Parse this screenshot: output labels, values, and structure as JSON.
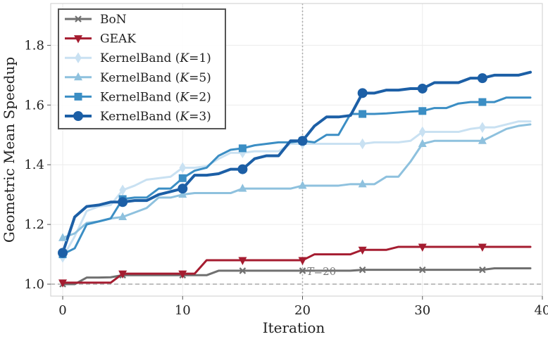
{
  "chart_data": {
    "type": "line",
    "title": "",
    "xlabel": "Iteration",
    "ylabel": "Geometric Mean Speedup",
    "xlim": [
      -1,
      40
    ],
    "ylim": [
      0.96,
      1.94
    ],
    "x_ticks": [
      0,
      10,
      20,
      30,
      40
    ],
    "y_ticks": [
      1.0,
      1.2,
      1.4,
      1.6,
      1.8
    ],
    "x_tick_labels": [
      "0",
      "10",
      "20",
      "30",
      "40"
    ],
    "y_tick_labels": [
      "1.0",
      "1.2",
      "1.4",
      "1.6",
      "1.8"
    ],
    "grid": true,
    "legend_position": "top-left",
    "reference_line": {
      "y": 1.0,
      "style": "dashed"
    },
    "vline": {
      "x": 20,
      "label": "T=20",
      "style": "dotted"
    },
    "x": [
      0,
      1,
      2,
      3,
      4,
      5,
      6,
      7,
      8,
      9,
      10,
      11,
      12,
      13,
      14,
      15,
      16,
      17,
      18,
      19,
      20,
      21,
      22,
      23,
      24,
      25,
      26,
      27,
      28,
      29,
      30,
      31,
      32,
      33,
      34,
      35,
      36,
      37,
      38,
      39
    ],
    "series": [
      {
        "name": "BoN",
        "legend_main": "BoN",
        "legend_k": "",
        "color": "#707070",
        "marker": "x",
        "values": [
          1.0,
          1.0,
          1.022,
          1.022,
          1.023,
          1.03,
          1.03,
          1.03,
          1.03,
          1.03,
          1.03,
          1.03,
          1.03,
          1.045,
          1.045,
          1.045,
          1.045,
          1.045,
          1.045,
          1.045,
          1.045,
          1.045,
          1.045,
          1.045,
          1.045,
          1.048,
          1.048,
          1.048,
          1.048,
          1.048,
          1.048,
          1.048,
          1.048,
          1.048,
          1.048,
          1.048,
          1.053,
          1.053,
          1.053,
          1.053
        ]
      },
      {
        "name": "GEAK",
        "legend_main": "GEAK",
        "legend_k": "",
        "color": "#a51c30",
        "marker": "triangle-down",
        "values": [
          1.005,
          1.005,
          1.005,
          1.005,
          1.005,
          1.035,
          1.035,
          1.035,
          1.035,
          1.035,
          1.035,
          1.035,
          1.08,
          1.08,
          1.08,
          1.08,
          1.08,
          1.08,
          1.08,
          1.08,
          1.08,
          1.1,
          1.1,
          1.1,
          1.1,
          1.115,
          1.115,
          1.115,
          1.125,
          1.125,
          1.125,
          1.125,
          1.125,
          1.125,
          1.125,
          1.125,
          1.125,
          1.125,
          1.125,
          1.125
        ]
      },
      {
        "name": "KernelBand (K=1)",
        "legend_main": "KernelBand (",
        "legend_k": "K",
        "legend_tail": "=1)",
        "color": "#c9e1f2",
        "marker": "diamond",
        "values": [
          1.09,
          1.16,
          1.245,
          1.26,
          1.265,
          1.315,
          1.33,
          1.35,
          1.355,
          1.36,
          1.39,
          1.39,
          1.395,
          1.42,
          1.44,
          1.44,
          1.445,
          1.445,
          1.445,
          1.47,
          1.47,
          1.47,
          1.47,
          1.47,
          1.47,
          1.47,
          1.475,
          1.475,
          1.475,
          1.48,
          1.51,
          1.51,
          1.51,
          1.51,
          1.52,
          1.525,
          1.525,
          1.535,
          1.545,
          1.545
        ]
      },
      {
        "name": "KernelBand (K=5)",
        "legend_main": "KernelBand (",
        "legend_k": "K",
        "legend_tail": "=5)",
        "color": "#8ec1de",
        "marker": "triangle-up",
        "values": [
          1.155,
          1.17,
          1.205,
          1.21,
          1.22,
          1.225,
          1.24,
          1.255,
          1.29,
          1.29,
          1.3,
          1.305,
          1.305,
          1.305,
          1.305,
          1.32,
          1.32,
          1.32,
          1.32,
          1.32,
          1.33,
          1.33,
          1.33,
          1.33,
          1.335,
          1.335,
          1.335,
          1.36,
          1.36,
          1.41,
          1.47,
          1.48,
          1.48,
          1.48,
          1.48,
          1.48,
          1.5,
          1.52,
          1.53,
          1.535
        ]
      },
      {
        "name": "KernelBand (K=2)",
        "legend_main": "KernelBand (",
        "legend_k": "K",
        "legend_tail": "=2)",
        "color": "#3b8ec4",
        "marker": "square",
        "values": [
          1.1,
          1.12,
          1.2,
          1.21,
          1.22,
          1.285,
          1.29,
          1.29,
          1.32,
          1.32,
          1.355,
          1.38,
          1.39,
          1.43,
          1.45,
          1.455,
          1.465,
          1.47,
          1.475,
          1.475,
          1.48,
          1.475,
          1.5,
          1.5,
          1.57,
          1.57,
          1.57,
          1.572,
          1.575,
          1.578,
          1.58,
          1.59,
          1.59,
          1.605,
          1.61,
          1.61,
          1.61,
          1.625,
          1.625,
          1.625
        ]
      },
      {
        "name": "KernelBand (K=3)",
        "legend_main": "KernelBand (",
        "legend_k": "K",
        "legend_tail": "=3)",
        "color": "#1c5fa6",
        "marker": "circle",
        "values": [
          1.105,
          1.225,
          1.26,
          1.265,
          1.275,
          1.275,
          1.28,
          1.28,
          1.3,
          1.31,
          1.32,
          1.365,
          1.365,
          1.37,
          1.385,
          1.385,
          1.42,
          1.43,
          1.43,
          1.48,
          1.48,
          1.53,
          1.56,
          1.56,
          1.565,
          1.64,
          1.64,
          1.65,
          1.65,
          1.655,
          1.655,
          1.675,
          1.675,
          1.675,
          1.69,
          1.69,
          1.7,
          1.7,
          1.7,
          1.71
        ]
      }
    ]
  }
}
